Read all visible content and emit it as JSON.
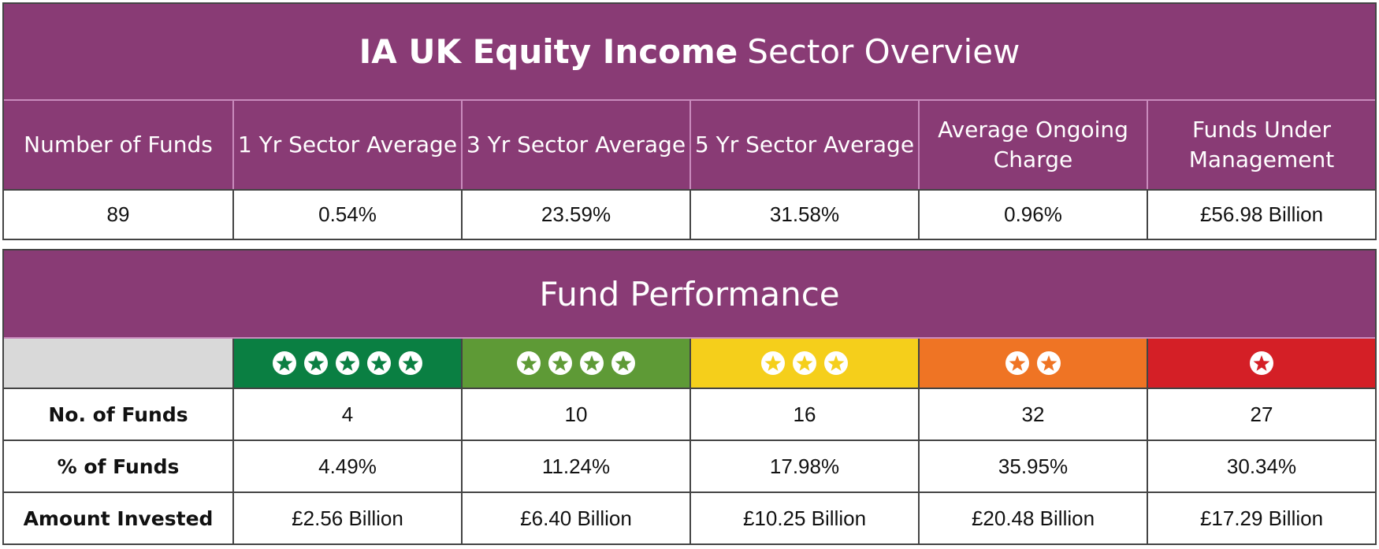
{
  "overview": {
    "title_bold": "IA UK Equity Income",
    "title_rest": "Sector Overview",
    "headers": [
      "Number of Funds",
      "1 Yr Sector Average",
      "3 Yr Sector Average",
      "5 Yr Sector Average",
      "Average Ongoing Charge",
      "Funds Under Management"
    ],
    "values": [
      "89",
      "0.54%",
      "23.59%",
      "31.58%",
      "0.96%",
      "£56.98 Billion"
    ]
  },
  "performance": {
    "title": "Fund Performance",
    "ratings": [
      5,
      4,
      3,
      2,
      1
    ],
    "rating_colors": [
      "#0a7f42",
      "#5e9a36",
      "#f5cf1b",
      "#ef7424",
      "#d41f26"
    ],
    "rows": [
      {
        "label": "No. of Funds",
        "values": [
          "4",
          "10",
          "16",
          "32",
          "27"
        ]
      },
      {
        "label": "% of Funds",
        "values": [
          "4.49%",
          "11.24%",
          "17.98%",
          "35.95%",
          "30.34%"
        ]
      },
      {
        "label": "Amount Invested",
        "values": [
          "£2.56 Billion",
          "£6.40 Billion",
          "£10.25 Billion",
          "£20.48 Billion",
          "£17.29 Billion"
        ]
      }
    ]
  }
}
